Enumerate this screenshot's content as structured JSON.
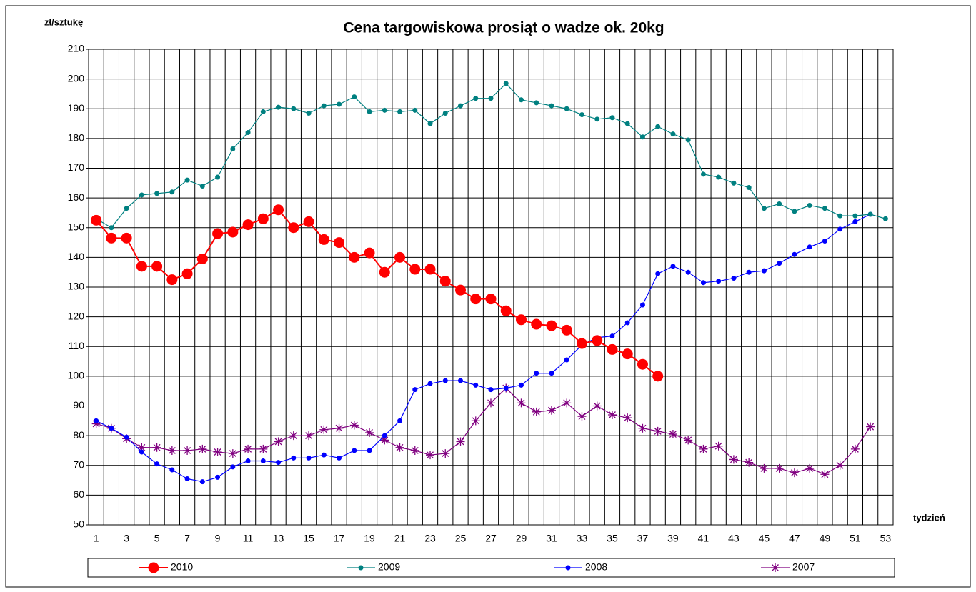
{
  "chart_data": {
    "type": "line",
    "title": "Cena targowiskowa prosiąt o wadze ok. 20kg",
    "y_label": "zł/sztukę",
    "x_label": "tydzień",
    "categories": [
      1,
      null,
      3,
      null,
      5,
      null,
      7,
      null,
      9,
      null,
      11,
      null,
      13,
      null,
      15,
      null,
      17,
      null,
      19,
      null,
      21,
      null,
      23,
      null,
      25,
      null,
      27,
      null,
      29,
      null,
      31,
      null,
      33,
      null,
      35,
      null,
      37,
      null,
      39,
      null,
      41,
      null,
      43,
      null,
      45,
      null,
      47,
      null,
      49,
      null,
      51,
      null,
      53
    ],
    "ylim": [
      50,
      210
    ],
    "yticks": [
      50,
      60,
      70,
      80,
      90,
      100,
      110,
      120,
      130,
      140,
      150,
      160,
      170,
      180,
      190,
      200,
      210
    ],
    "grid": true,
    "legend": "bottom",
    "series": [
      {
        "name": "2010",
        "color": "#ff0000",
        "marker": "big-circle",
        "values": [
          152.5,
          146.5,
          146.5,
          137,
          137,
          132.5,
          134.5,
          139.5,
          148,
          148.5,
          151,
          153,
          156,
          150,
          152,
          146,
          145,
          140,
          141.5,
          135,
          140,
          136,
          136,
          132,
          129,
          126,
          126,
          122,
          119,
          117.5,
          117,
          115.5,
          111,
          112,
          109,
          107.5,
          104,
          100,
          null,
          null,
          null,
          null,
          null,
          null,
          null,
          null,
          null,
          null,
          null,
          null,
          null,
          null,
          null
        ]
      },
      {
        "name": "2009",
        "color": "#008080",
        "marker": "circle",
        "values": [
          153,
          150,
          156.5,
          161,
          161.5,
          162,
          166,
          164,
          167,
          176.5,
          182,
          189,
          190.5,
          190,
          188.5,
          191,
          191.5,
          194,
          189,
          189.5,
          189,
          189.5,
          185,
          188.5,
          191,
          193.5,
          193.5,
          198.5,
          193,
          192,
          191,
          190,
          188,
          186.5,
          187,
          185,
          180.5,
          184,
          181.5,
          179.5,
          168,
          167,
          165,
          163.5,
          156.5,
          158,
          155.5,
          157.5,
          156.5,
          154,
          154,
          154.5,
          153
        ]
      },
      {
        "name": "2008",
        "color": "#0000ff",
        "marker": "circle",
        "values": [
          85,
          82.5,
          79.5,
          74.5,
          70.5,
          68.5,
          65.5,
          64.5,
          66,
          69.5,
          71.5,
          71.5,
          71,
          72.5,
          72.5,
          73.5,
          72.5,
          75,
          75,
          80,
          85,
          95.5,
          97.5,
          98.5,
          98.5,
          97,
          95.5,
          96,
          97,
          101,
          101,
          105.5,
          110.5,
          113,
          113.5,
          118,
          124,
          134.5,
          137,
          135,
          131.5,
          132,
          133,
          135,
          135.5,
          138,
          141,
          143.5,
          145.5,
          149.5,
          152,
          154.5,
          null
        ]
      },
      {
        "name": "2007",
        "color": "#800080",
        "marker": "star",
        "values": [
          84,
          82.5,
          79,
          76,
          76,
          75,
          75,
          75.5,
          74.5,
          74,
          75.5,
          75.5,
          78,
          80,
          80,
          82,
          82.5,
          83.5,
          81,
          78.5,
          76,
          75,
          73.5,
          74,
          78,
          85,
          91,
          96,
          91,
          88,
          88.5,
          91,
          86.5,
          90,
          87,
          86,
          82.5,
          81.5,
          80.5,
          78.5,
          75.5,
          76.5,
          72,
          71,
          69,
          69,
          67.5,
          69,
          67,
          70,
          75.5,
          83,
          null
        ]
      }
    ]
  }
}
